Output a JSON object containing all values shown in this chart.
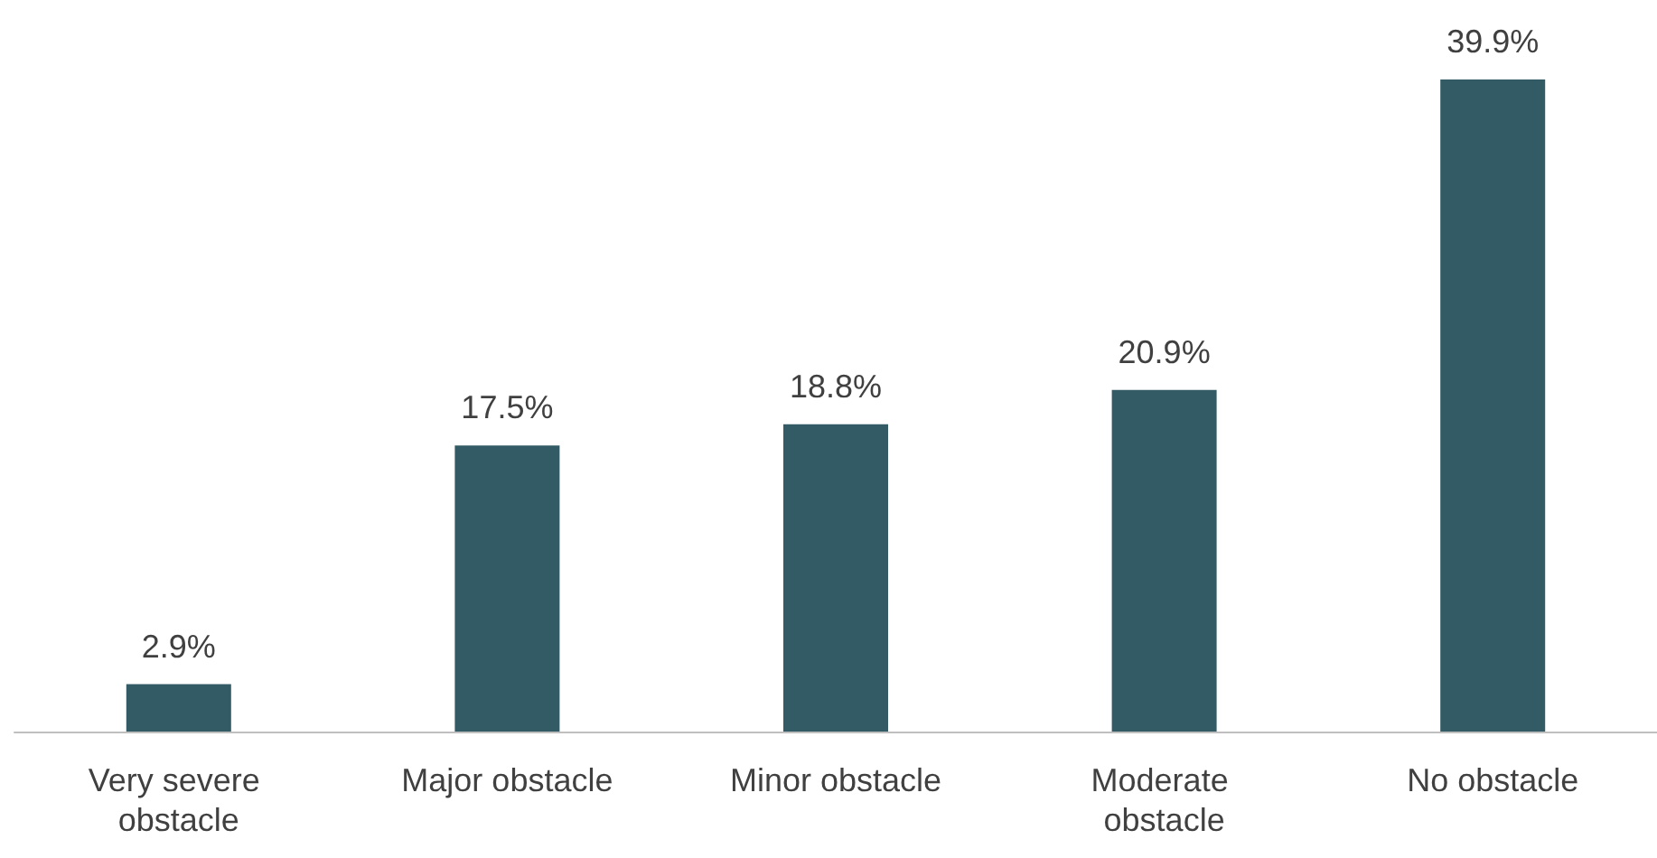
{
  "chart_data": {
    "type": "bar",
    "categories": [
      "Very severe obstacle",
      "Major obstacle",
      "Minor obstacle",
      "Moderate obstacle",
      "No obstacle"
    ],
    "values": [
      2.9,
      17.5,
      18.8,
      20.9,
      39.9
    ],
    "value_labels": [
      "2.9%",
      "17.5%",
      "18.8%",
      "20.9%",
      "39.9%"
    ],
    "color": "#335b66"
  }
}
